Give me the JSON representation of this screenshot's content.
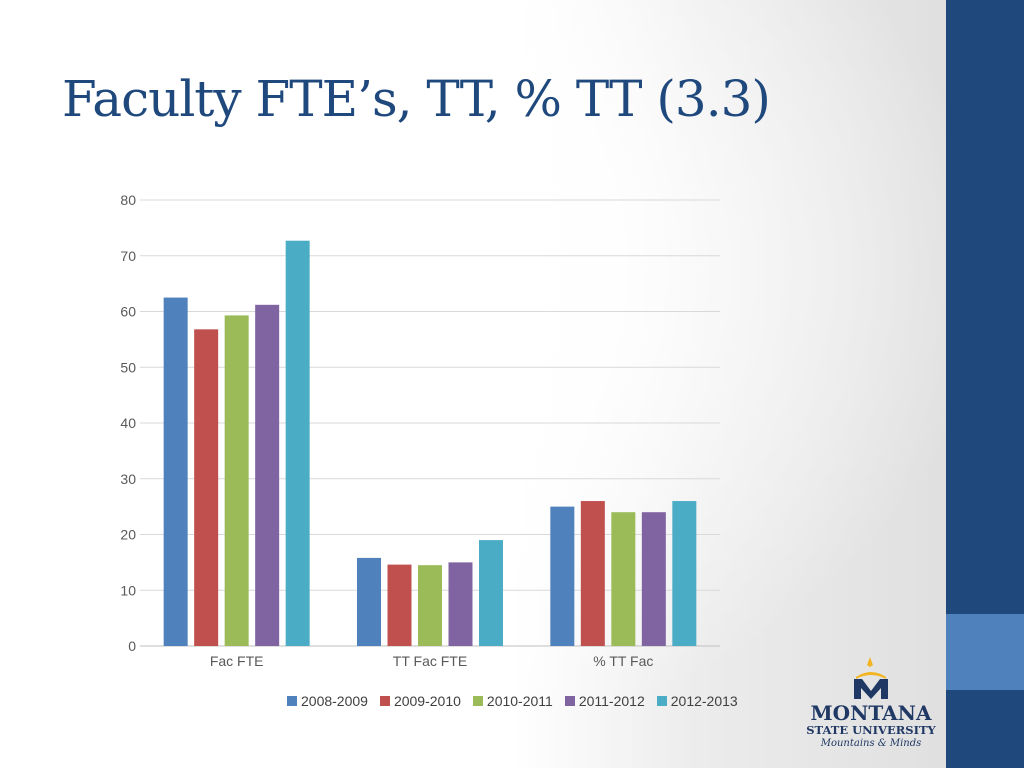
{
  "slide": {
    "title": "Faculty FTE’s, TT, % TT (3.3)"
  },
  "colors": {
    "accent_bar": "#1f487c",
    "accent_bar_highlight": "#4f81bd",
    "title": "#1f497d"
  },
  "logo": {
    "line1": "MONTANA",
    "line2": "STATE UNIVERSITY",
    "line3": "Mountains & Minds"
  },
  "chart_data": {
    "type": "bar",
    "title": "",
    "xlabel": "",
    "ylabel": "",
    "ylim": [
      0,
      80
    ],
    "yticks": [
      0,
      10,
      20,
      30,
      40,
      50,
      60,
      70,
      80
    ],
    "grid": true,
    "legend_position": "bottom",
    "categories": [
      "Fac FTE",
      "TT Fac FTE",
      "% TT Fac"
    ],
    "series": [
      {
        "name": "2008-2009",
        "color": "#4f81bd",
        "values": [
          62.5,
          15.8,
          25
        ]
      },
      {
        "name": "2009-2010",
        "color": "#c0504d",
        "values": [
          56.8,
          14.6,
          26
        ]
      },
      {
        "name": "2010-2011",
        "color": "#9bbb59",
        "values": [
          59.3,
          14.5,
          24
        ]
      },
      {
        "name": "2011-2012",
        "color": "#8064a2",
        "values": [
          61.2,
          15.0,
          24
        ]
      },
      {
        "name": "2012-2013",
        "color": "#4bacc6",
        "values": [
          72.7,
          19.0,
          26
        ]
      }
    ]
  }
}
